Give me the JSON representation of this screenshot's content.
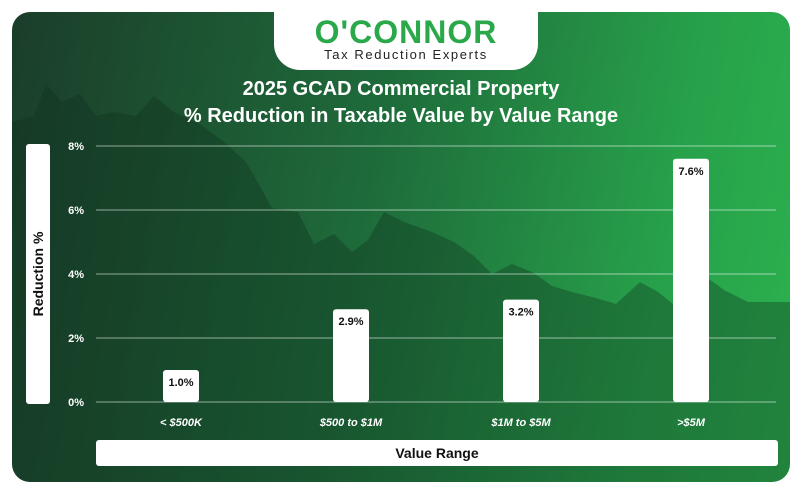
{
  "logo": {
    "name": "O'CONNOR",
    "tagline": "Tax Reduction Experts"
  },
  "colors": {
    "brand_green": "#2aa84a",
    "bar": "#ffffff",
    "text": "#ffffff"
  },
  "chart_data": {
    "type": "bar",
    "title": "2025 GCAD Commercial Property",
    "subtitle": "% Reduction in Taxable Value by Value Range",
    "xlabel": "Value Range",
    "ylabel": "Reduction %",
    "categories": [
      "< $500K",
      "$500 to $1M",
      "$1M to $5M",
      ">$5M"
    ],
    "values": [
      1.0,
      2.9,
      3.2,
      7.6
    ],
    "data_labels": [
      "1.0%",
      "2.9%",
      "3.2%",
      "7.6%"
    ],
    "ylim": [
      0,
      8
    ],
    "yticks": [
      0,
      2,
      4,
      6,
      8
    ],
    "ytick_labels": [
      "0%",
      "2%",
      "4%",
      "6%",
      "8%"
    ],
    "grid": true,
    "legend": "none"
  }
}
